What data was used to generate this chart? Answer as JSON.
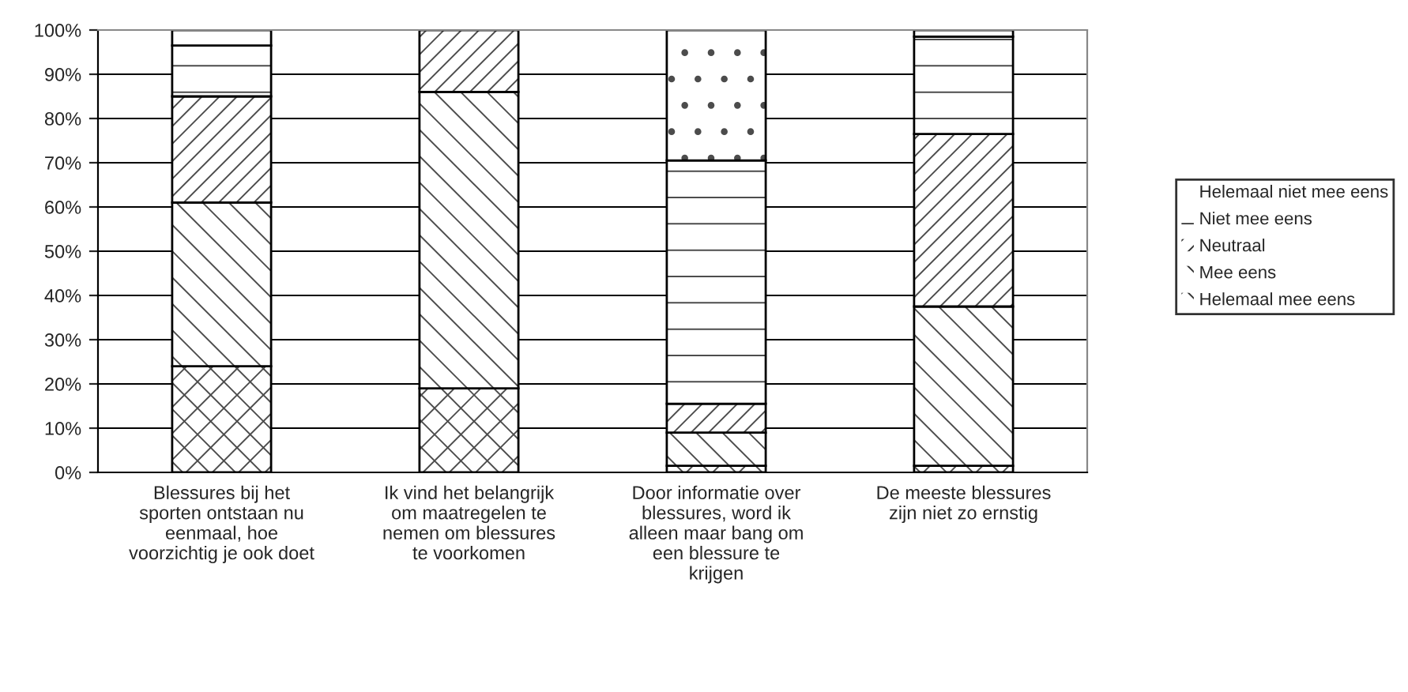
{
  "chart_data": {
    "type": "bar",
    "stacked": true,
    "categories": [
      "Blessures bij het\nsporten ontstaan nu\neenmaal, hoe\nvoorzichtig je ook doet",
      "Ik vind het belangrijk\nom maatregelen te\nnemen om blessures\nte voorkomen",
      "Door informatie over\nblessures, word ik\nalleen maar bang om\neen blessure te\nkrijgen",
      "De meeste blessures\nzijn niet zo ernstig"
    ],
    "series": [
      {
        "name": "Helemaal mee eens",
        "color": "#ffffff",
        "values": [
          24,
          19,
          1.5,
          1.5
        ]
      },
      {
        "name": "Mee eens",
        "color": "#ffffff",
        "values": [
          37,
          67,
          7.5,
          36
        ]
      },
      {
        "name": "Neutraal",
        "color": "#ffffff",
        "values": [
          24,
          14,
          6.5,
          39
        ]
      },
      {
        "name": "Niet mee eens",
        "color": "#ffffff",
        "values": [
          11.5,
          0,
          55,
          22
        ]
      },
      {
        "name": "Helemaal niet mee eens",
        "color": "#ffffff",
        "values": [
          3.5,
          0,
          29.5,
          1.5
        ]
      }
    ],
    "ylim": [
      0,
      100
    ],
    "yticks": [
      {
        "value": 0,
        "label": "0%"
      },
      {
        "value": 10,
        "label": "10%"
      },
      {
        "value": 20,
        "label": "20%"
      },
      {
        "value": 30,
        "label": "30%"
      },
      {
        "value": 40,
        "label": "40%"
      },
      {
        "value": 50,
        "label": "50%"
      },
      {
        "value": 60,
        "label": "60%"
      },
      {
        "value": 70,
        "label": "70%"
      },
      {
        "value": 80,
        "label": "80%"
      },
      {
        "value": 90,
        "label": "90%"
      },
      {
        "value": 100,
        "label": "100%"
      }
    ],
    "grid": "y",
    "legend": "right"
  }
}
